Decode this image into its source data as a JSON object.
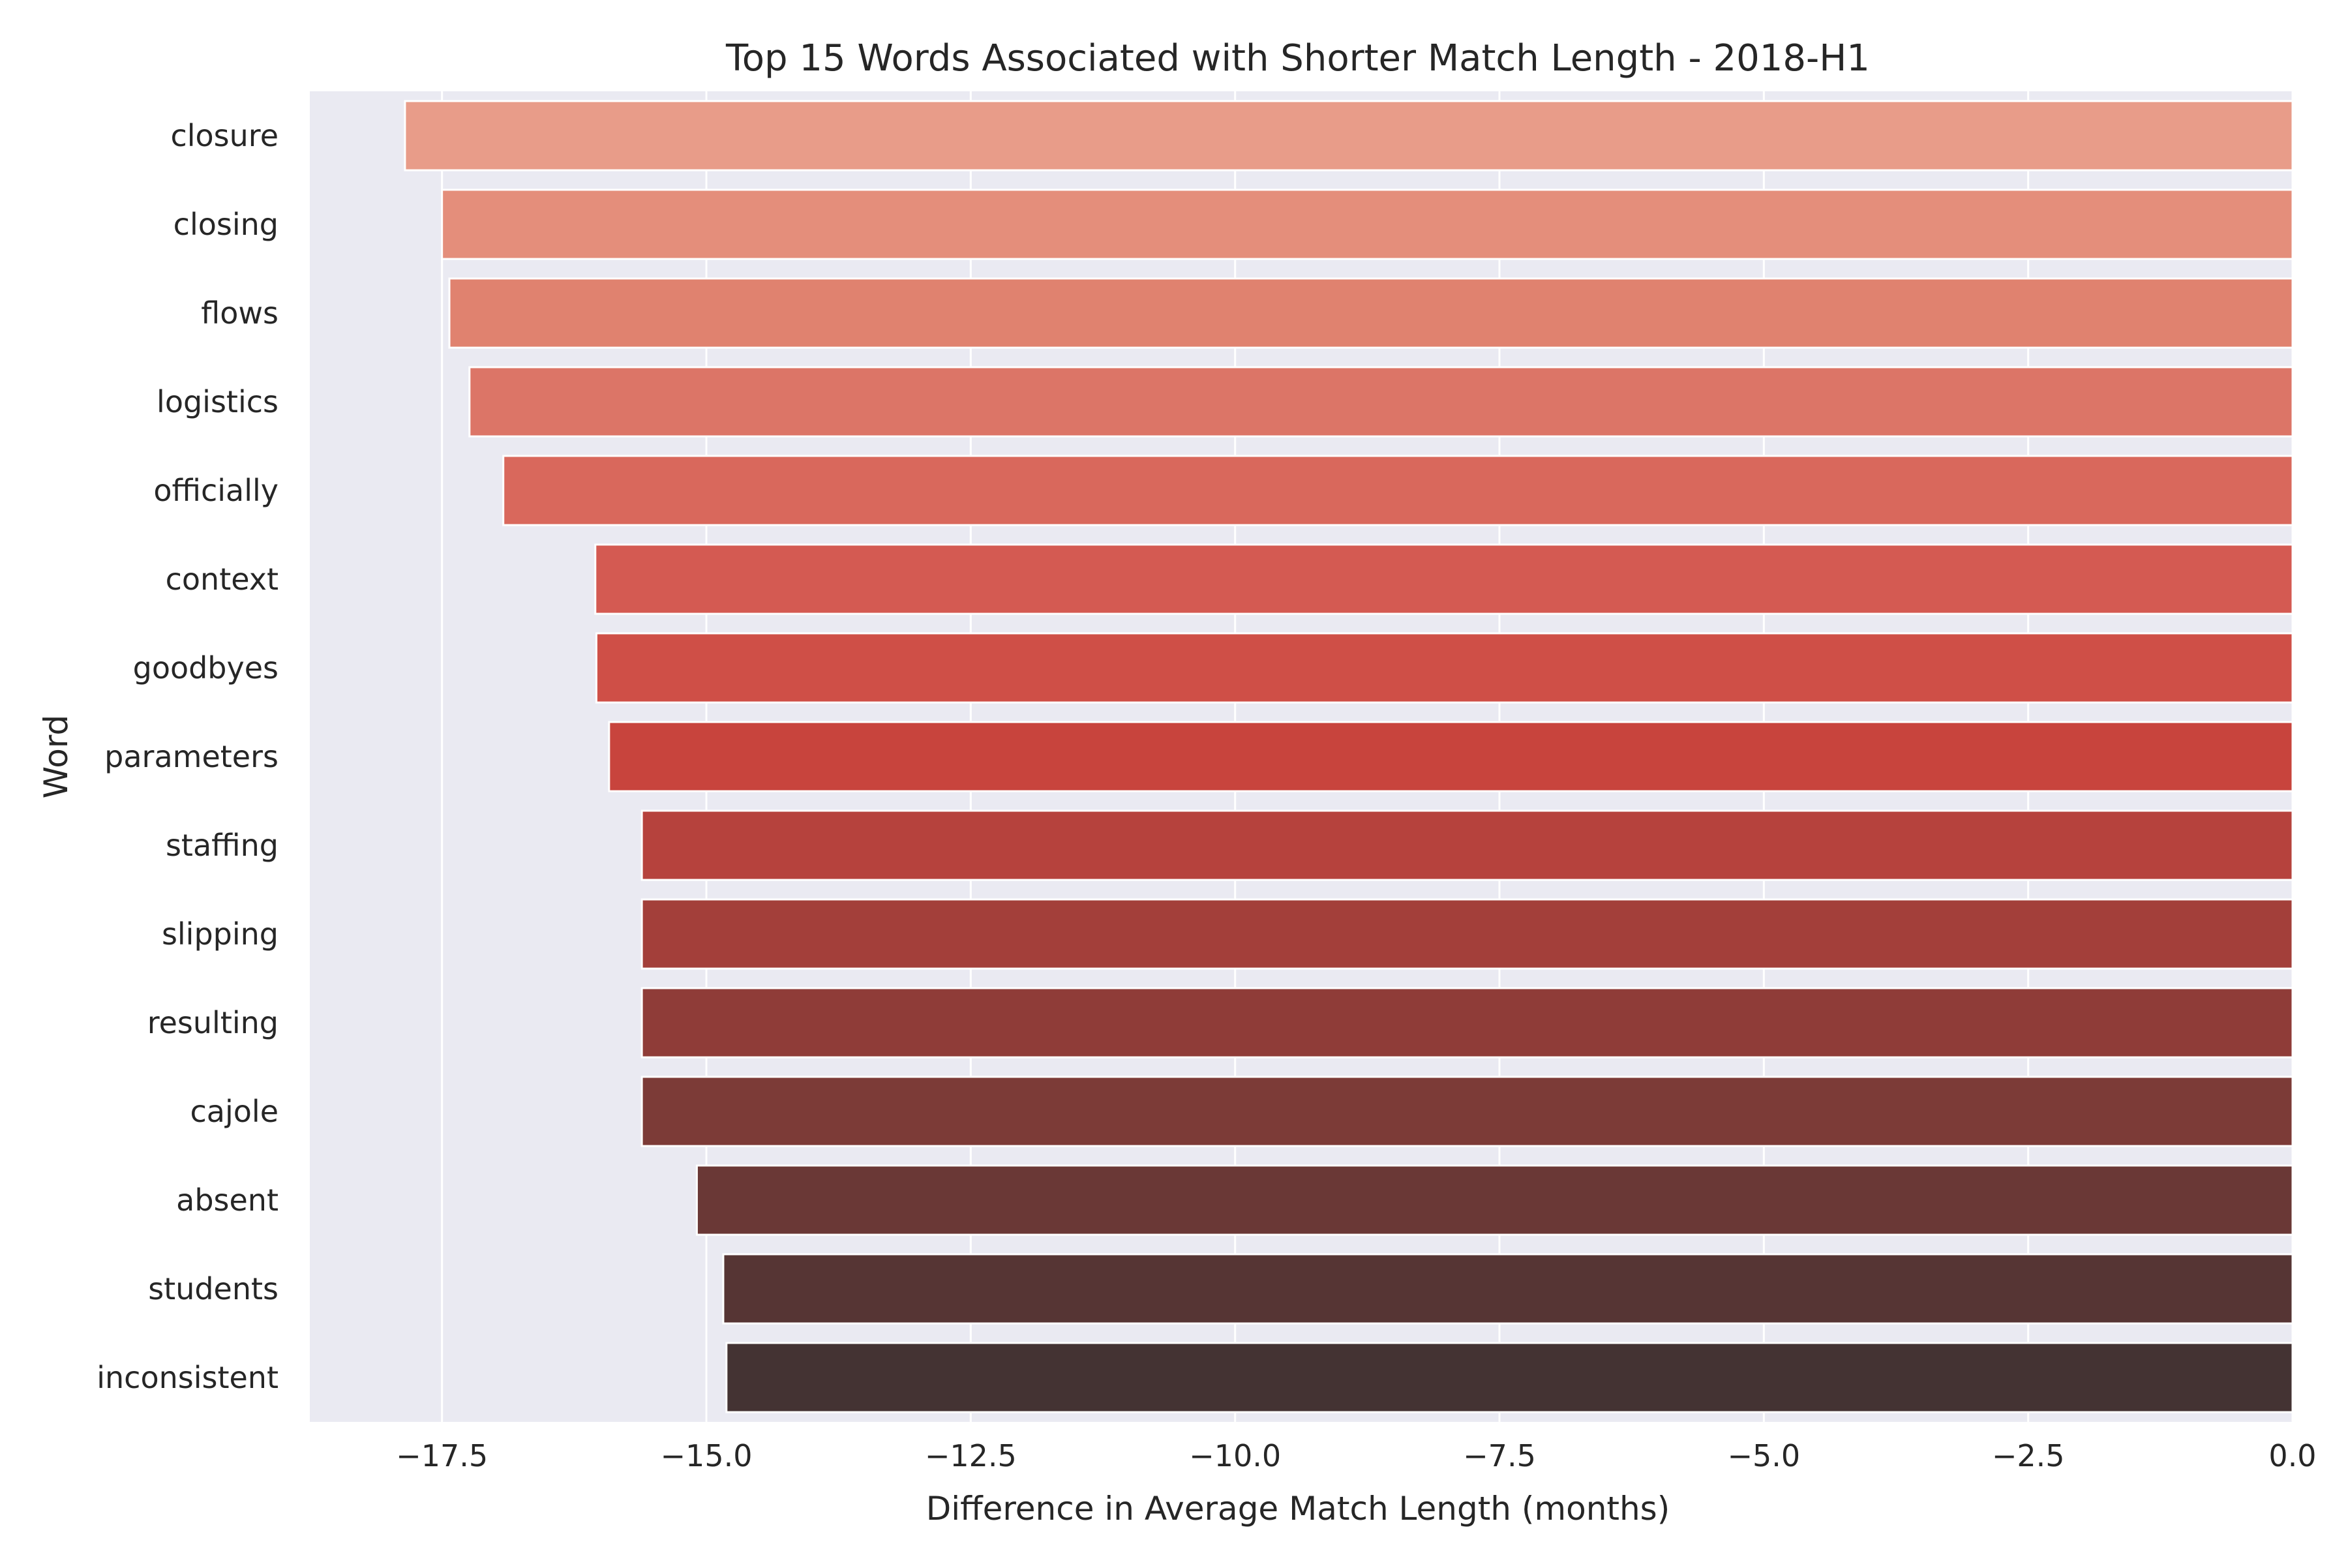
{
  "chart_data": {
    "type": "bar",
    "orientation": "horizontal",
    "title": "Top 15 Words Associated with Shorter Match Length - 2018-H1",
    "xlabel": "Difference in Average Match Length (months)",
    "ylabel": "Word",
    "xlim": [
      -18.75,
      0.0
    ],
    "x_ticks": [
      -17.5,
      -15.0,
      -12.5,
      -10.0,
      -7.5,
      -5.0,
      -2.5,
      0.0
    ],
    "x_tick_labels": [
      "−17.5",
      "−15.0",
      "−12.5",
      "−10.0",
      "−7.5",
      "−5.0",
      "−2.5",
      "0.0"
    ],
    "grid": true,
    "legend": "none",
    "categories": [
      "closure",
      "closing",
      "flows",
      "logistics",
      "officially",
      "context",
      "goodbyes",
      "parameters",
      "staffing",
      "slipping",
      "resulting",
      "cajole",
      "absent",
      "students",
      "inconsistent"
    ],
    "values": [
      -17.85,
      -17.5,
      -17.43,
      -17.24,
      -16.92,
      -16.05,
      -16.04,
      -15.92,
      -15.61,
      -15.61,
      -15.61,
      -15.61,
      -15.09,
      -14.84,
      -14.81
    ],
    "colors": [
      "#e89c89",
      "#e48e7b",
      "#e0826f",
      "#dc7567",
      "#d9685c",
      "#d45a52",
      "#cf4f47",
      "#c8443d",
      "#b6423d",
      "#a33f3a",
      "#8f3c38",
      "#7c3b37",
      "#6a3836",
      "#563534",
      "#443333"
    ],
    "background_color": "#eaeaf2",
    "grid_color": "#ffffff"
  }
}
